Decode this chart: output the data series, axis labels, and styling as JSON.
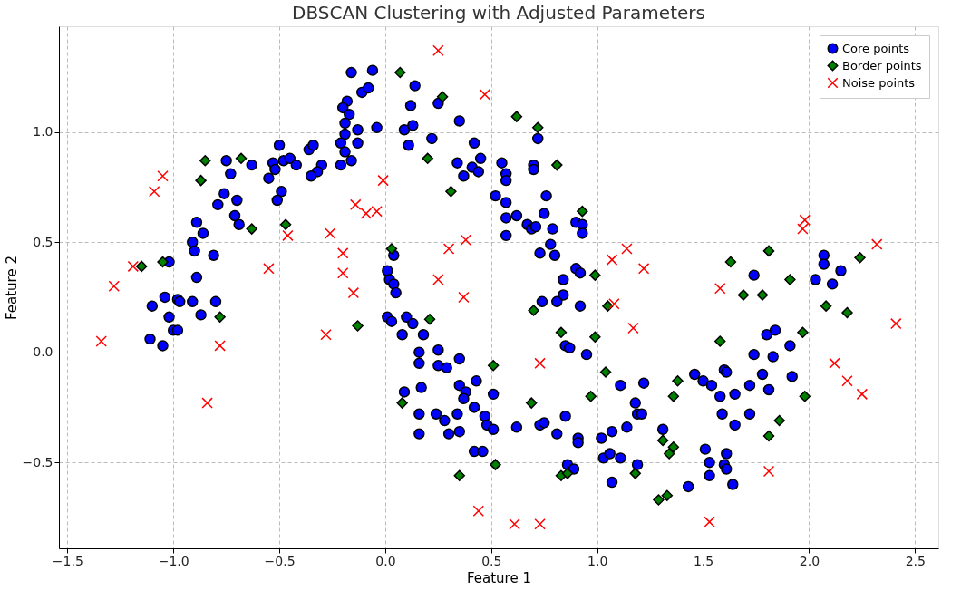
{
  "chart_data": {
    "type": "scatter",
    "title": "DBSCAN Clustering with Adjusted Parameters",
    "xlabel": "Feature 1",
    "ylabel": "Feature 2",
    "xlim": [
      -1.54,
      2.61
    ],
    "ylim": [
      -0.89,
      1.48
    ],
    "xticks": [
      {
        "value": -1.5,
        "label": "−1.5"
      },
      {
        "value": -1.0,
        "label": "−1.0"
      },
      {
        "value": -0.5,
        "label": "−0.5"
      },
      {
        "value": 0.0,
        "label": "0.0"
      },
      {
        "value": 0.5,
        "label": "0.5"
      },
      {
        "value": 1.0,
        "label": "1.0"
      },
      {
        "value": 1.5,
        "label": "1.5"
      },
      {
        "value": 2.0,
        "label": "2.0"
      },
      {
        "value": 2.5,
        "label": "2.5"
      }
    ],
    "yticks": [
      {
        "value": -0.5,
        "label": "−0.5"
      },
      {
        "value": 0.0,
        "label": "0.0"
      },
      {
        "value": 0.5,
        "label": "0.5"
      },
      {
        "value": 1.0,
        "label": "1.0"
      }
    ],
    "grid": true,
    "legend": "top right",
    "series": [
      {
        "name": "Core points",
        "color": "#0000ff",
        "marker": "circle",
        "x": [
          -0.16,
          -0.06,
          -0.11,
          -0.08,
          -0.18,
          -0.2,
          -0.17,
          -0.19,
          -0.13,
          -0.04,
          -0.19,
          -0.21,
          -0.13,
          -0.19,
          -0.16,
          -0.21,
          -0.3,
          -0.32,
          -0.35,
          -0.36,
          -0.34,
          -0.5,
          -0.53,
          -0.48,
          -0.45,
          -0.42,
          -0.52,
          -0.55,
          -0.49,
          -0.51,
          -0.75,
          -0.63,
          -0.73,
          -0.76,
          -0.79,
          -0.7,
          -0.71,
          -0.69,
          -0.89,
          -0.86,
          -0.91,
          -0.9,
          -0.81,
          -1.02,
          -0.89,
          -1.1,
          -1.04,
          -0.98,
          -0.97,
          -0.91,
          -0.8,
          -1.02,
          -0.87,
          -1.0,
          -0.98,
          -1.11,
          -1.05,
          0.14,
          0.12,
          0.25,
          0.35,
          0.09,
          0.13,
          0.11,
          0.22,
          0.42,
          0.45,
          0.34,
          0.41,
          0.37,
          0.44,
          0.55,
          0.57,
          0.57,
          0.7,
          0.7,
          0.72,
          0.52,
          0.57,
          0.57,
          0.57,
          0.62,
          0.76,
          0.75,
          0.79,
          0.67,
          0.69,
          0.71,
          0.78,
          0.73,
          0.8,
          0.9,
          0.93,
          0.93,
          0.9,
          0.92,
          0.84,
          0.84,
          0.81,
          0.74,
          0.92,
          0.04,
          0.01,
          0.02,
          0.04,
          0.05,
          0.01,
          0.03,
          0.1,
          0.13,
          0.08,
          0.18,
          0.16,
          0.25,
          0.16,
          0.25,
          0.29,
          0.35,
          0.85,
          0.87,
          0.95,
          1.46,
          0.09,
          0.17,
          0.35,
          0.38,
          0.37,
          0.43,
          0.51,
          0.42,
          0.16,
          0.24,
          0.28,
          0.34,
          0.16,
          0.3,
          0.35,
          0.47,
          0.48,
          0.51,
          0.42,
          0.46,
          0.62,
          0.73,
          0.75,
          0.85,
          0.81,
          0.91,
          0.91,
          0.86,
          0.89,
          1.02,
          1.07,
          1.14,
          1.18,
          1.19,
          1.21,
          1.11,
          1.22,
          1.03,
          1.06,
          1.11,
          1.19,
          1.07,
          1.31,
          1.43,
          1.5,
          2.07,
          2.07,
          2.15,
          1.74,
          2.03,
          2.11,
          1.84,
          1.8,
          1.91,
          1.74,
          1.83,
          1.54,
          1.6,
          1.61,
          1.58,
          1.65,
          1.72,
          1.78,
          1.81,
          1.92,
          1.59,
          1.65,
          1.72,
          1.51,
          1.53,
          1.53,
          1.6,
          1.61,
          1.61,
          1.64
        ],
        "values": [
          1.27,
          1.28,
          1.18,
          1.2,
          1.14,
          1.11,
          1.08,
          1.04,
          1.01,
          1.02,
          0.99,
          0.95,
          0.95,
          0.91,
          0.87,
          0.85,
          0.85,
          0.82,
          0.8,
          0.92,
          0.94,
          0.94,
          0.86,
          0.87,
          0.88,
          0.85,
          0.83,
          0.79,
          0.73,
          0.69,
          0.87,
          0.85,
          0.81,
          0.72,
          0.67,
          0.69,
          0.62,
          0.58,
          0.59,
          0.54,
          0.5,
          0.46,
          0.44,
          0.41,
          0.34,
          0.21,
          0.25,
          0.24,
          0.23,
          0.23,
          0.23,
          0.16,
          0.17,
          0.1,
          0.1,
          0.06,
          0.03,
          1.21,
          1.12,
          1.13,
          1.05,
          1.01,
          1.03,
          0.94,
          0.97,
          0.95,
          0.88,
          0.86,
          0.84,
          0.8,
          0.82,
          0.86,
          0.81,
          0.78,
          0.85,
          0.83,
          0.97,
          0.71,
          0.68,
          0.61,
          0.53,
          0.62,
          0.71,
          0.63,
          0.56,
          0.58,
          0.56,
          0.57,
          0.49,
          0.45,
          0.44,
          0.59,
          0.58,
          0.54,
          0.38,
          0.36,
          0.33,
          0.26,
          0.23,
          0.23,
          0.21,
          0.44,
          0.37,
          0.33,
          0.31,
          0.27,
          0.16,
          0.14,
          0.16,
          0.13,
          0.08,
          0.08,
          0.0,
          0.01,
          -0.05,
          -0.06,
          -0.07,
          -0.03,
          0.03,
          0.02,
          -0.01,
          -0.1,
          -0.18,
          -0.16,
          -0.15,
          -0.18,
          -0.21,
          -0.13,
          -0.19,
          -0.25,
          -0.28,
          -0.28,
          -0.31,
          -0.28,
          -0.37,
          -0.37,
          -0.36,
          -0.29,
          -0.33,
          -0.35,
          -0.45,
          -0.45,
          -0.34,
          -0.33,
          -0.32,
          -0.29,
          -0.37,
          -0.39,
          -0.41,
          -0.51,
          -0.53,
          -0.39,
          -0.36,
          -0.34,
          -0.23,
          -0.28,
          -0.28,
          -0.15,
          -0.14,
          -0.48,
          -0.46,
          -0.48,
          -0.51,
          -0.59,
          -0.35,
          -0.61,
          -0.13,
          0.44,
          0.4,
          0.37,
          0.35,
          0.33,
          0.31,
          0.1,
          0.08,
          0.03,
          -0.01,
          -0.02,
          -0.15,
          -0.08,
          -0.09,
          -0.2,
          -0.19,
          -0.15,
          -0.1,
          -0.17,
          -0.11,
          -0.28,
          -0.33,
          -0.28,
          -0.44,
          -0.5,
          -0.56,
          -0.51,
          -0.46,
          -0.53,
          -0.6
        ]
      },
      {
        "name": "Border points",
        "color": "#008000",
        "marker": "diamond",
        "x": [
          -0.85,
          -0.68,
          -0.87,
          -0.63,
          -0.47,
          -1.15,
          -1.05,
          -0.78,
          -0.13,
          0.03,
          0.07,
          0.27,
          0.62,
          0.72,
          0.2,
          0.81,
          0.31,
          0.93,
          0.99,
          1.05,
          0.7,
          0.21,
          0.83,
          0.99,
          0.51,
          1.04,
          0.08,
          0.69,
          0.97,
          1.38,
          1.36,
          0.52,
          0.35,
          0.83,
          0.86,
          1.18,
          1.31,
          1.36,
          1.34,
          1.33,
          1.29,
          1.81,
          1.63,
          2.24,
          1.91,
          1.69,
          1.78,
          2.08,
          2.18,
          1.97,
          1.58,
          1.98,
          1.86,
          1.81
        ],
        "values": [
          0.87,
          0.88,
          0.78,
          0.56,
          0.58,
          0.39,
          0.41,
          0.16,
          0.12,
          0.47,
          1.27,
          1.16,
          1.07,
          1.02,
          0.88,
          0.85,
          0.73,
          0.64,
          0.35,
          0.21,
          0.19,
          0.15,
          0.09,
          0.07,
          -0.06,
          -0.09,
          -0.23,
          -0.23,
          -0.2,
          -0.13,
          -0.2,
          -0.51,
          -0.56,
          -0.56,
          -0.55,
          -0.55,
          -0.4,
          -0.43,
          -0.46,
          -0.65,
          -0.67,
          0.46,
          0.41,
          0.43,
          0.33,
          0.26,
          0.26,
          0.21,
          0.18,
          0.09,
          0.05,
          -0.2,
          -0.31,
          -0.38
        ]
      },
      {
        "name": "Noise points",
        "color": "#ff0000",
        "marker": "cross",
        "x": [
          -1.34,
          -1.28,
          -1.19,
          -1.09,
          -1.05,
          -0.84,
          -0.78,
          -0.55,
          -0.46,
          -0.28,
          -0.26,
          -0.2,
          -0.2,
          -0.15,
          -0.14,
          -0.09,
          -0.04,
          -0.01,
          0.25,
          0.47,
          0.3,
          0.38,
          0.25,
          0.37,
          1.07,
          1.14,
          1.22,
          1.08,
          1.17,
          0.73,
          0.44,
          0.61,
          0.73,
          1.98,
          1.97,
          2.32,
          1.58,
          2.41,
          2.12,
          2.18,
          2.25,
          1.81,
          1.53
        ],
        "values": [
          0.05,
          0.3,
          0.39,
          0.73,
          0.8,
          -0.23,
          0.03,
          0.38,
          0.53,
          0.08,
          0.54,
          0.36,
          0.45,
          0.27,
          0.67,
          0.63,
          0.64,
          0.78,
          1.37,
          1.17,
          0.47,
          0.51,
          0.33,
          0.25,
          0.42,
          0.47,
          0.38,
          0.22,
          0.11,
          -0.05,
          -0.72,
          -0.78,
          -0.78,
          0.6,
          0.56,
          0.49,
          0.29,
          0.13,
          -0.05,
          -0.13,
          -0.19,
          -0.54,
          -0.77
        ]
      }
    ]
  }
}
